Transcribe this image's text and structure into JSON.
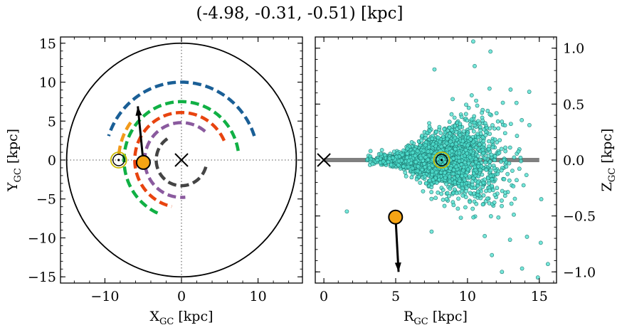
{
  "figure_title": "(-4.98, -0.31, -0.51) [kpc]",
  "chart_data": [
    {
      "type": "scatter",
      "panel": "left",
      "title": "",
      "xlabel_main": "X",
      "xlabel_sub": "GC",
      "xlabel_unit": " [kpc]",
      "ylabel_main": "Y",
      "ylabel_sub": "GC",
      "ylabel_unit": " [kpc]",
      "xlim": [
        -15.8,
        15.8
      ],
      "ylim": [
        -15.8,
        15.8
      ],
      "xticks": [
        -10,
        0,
        10
      ],
      "xtick_labels": [
        "−10",
        "0",
        "10"
      ],
      "yticks": [
        -15,
        -10,
        -5,
        0,
        5,
        10,
        15
      ],
      "ytick_labels": [
        "−15",
        "−10",
        "−5",
        "0",
        "5",
        "10",
        "15"
      ],
      "grid": false,
      "boundary_circle_radius": 15,
      "reference_lines": {
        "x": 0,
        "y": 0
      },
      "arms": [
        {
          "color": "#1a5f96",
          "radius": 10.0,
          "start_deg": 162,
          "end_deg": 18
        },
        {
          "color": "#10b044",
          "radius": 7.5,
          "start_deg": 9,
          "end_deg": 246
        },
        {
          "color": "#e8440f",
          "radius": 6.1,
          "start_deg": 24,
          "end_deg": 258
        },
        {
          "color": "#f29a1a",
          "radius": 8.2,
          "start_deg": 144,
          "end_deg": 178
        },
        {
          "color": "#8a5a9e",
          "radius": 4.8,
          "start_deg": 50,
          "end_deg": 276
        },
        {
          "color": "#444444",
          "radius": 3.3,
          "start_deg": 124,
          "end_deg": 350
        }
      ],
      "galactic_center": {
        "x": 0,
        "y": 0,
        "marker": "x"
      },
      "sun": {
        "x": -8.2,
        "y": 0.0,
        "marker": "sun"
      },
      "object": {
        "x": -4.98,
        "y": -0.31,
        "color": "#f5a414"
      },
      "velocity_arrow": {
        "x0": -4.98,
        "y0": -0.31,
        "x1": -5.7,
        "y1": 6.9
      }
    },
    {
      "type": "scatter",
      "panel": "right",
      "title": "",
      "xlabel_main": "R",
      "xlabel_sub": "GC",
      "xlabel_unit": " [kpc]",
      "ylabel_main": "Z",
      "ylabel_sub": "GC",
      "ylabel_unit": " [kpc]",
      "xlim": [
        -0.6,
        16.2
      ],
      "ylim": [
        -1.1,
        1.1
      ],
      "xticks": [
        0,
        5,
        10,
        15
      ],
      "xtick_labels": [
        "0",
        "5",
        "10",
        "15"
      ],
      "yticks": [
        -1.0,
        -0.5,
        0.0,
        0.5,
        1.0
      ],
      "ytick_labels": [
        "−1.0",
        "−0.5",
        "0.0",
        "0.5",
        "1.0"
      ],
      "grid": false,
      "disk_line": {
        "x0": 0,
        "x1": 15,
        "z": 0
      },
      "scatter": {
        "color": "#4fe0d0",
        "edgecolor": "#1e7a72",
        "count": 2200,
        "description_r_range": [
          1.5,
          15.8
        ],
        "z_range": [
          -1.08,
          1.06
        ],
        "outliers": [
          {
            "x": 10.4,
            "y": 1.06
          },
          {
            "x": 11.6,
            "y": 0.97
          },
          {
            "x": 7.7,
            "y": 0.81
          },
          {
            "x": 10.5,
            "y": 0.84
          },
          {
            "x": 14.3,
            "y": 0.61
          },
          {
            "x": 1.6,
            "y": -0.46
          },
          {
            "x": 11.7,
            "y": -0.85
          },
          {
            "x": 12.4,
            "y": -1.0
          },
          {
            "x": 15.6,
            "y": -0.93
          },
          {
            "x": 14.9,
            "y": -1.05
          },
          {
            "x": 11.2,
            "y": -0.68
          },
          {
            "x": 13.8,
            "y": -0.97
          },
          {
            "x": 15.1,
            "y": -0.74
          },
          {
            "x": 7.5,
            "y": -0.64
          },
          {
            "x": 13.0,
            "y": 0.63
          }
        ]
      },
      "galactic_center": {
        "x": 0,
        "y": 0,
        "marker": "x"
      },
      "sun": {
        "x": 8.2,
        "y": 0.0,
        "marker": "sun"
      },
      "object": {
        "x": 4.99,
        "y": -0.51,
        "color": "#f5a414"
      },
      "velocity_arrow": {
        "x0": 4.99,
        "y0": -0.51,
        "x1": 5.2,
        "y1": -1.0
      }
    }
  ]
}
